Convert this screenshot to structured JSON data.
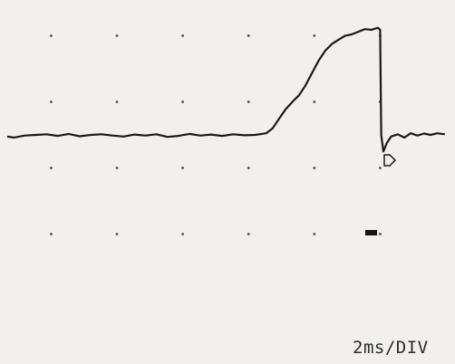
{
  "chart_data": {
    "type": "line",
    "title": "",
    "xlabel": "",
    "ylabel": "",
    "timebase": "2ms/DIV",
    "x_unit": "ms",
    "x_divisions": 10,
    "y_divisions": 8,
    "xlim": [
      0,
      20
    ],
    "ylim": [
      -4,
      4
    ],
    "grid": "dots",
    "series": [
      {
        "x": [
          0.0,
          0.3,
          0.8,
          1.3,
          1.8,
          2.3,
          2.8,
          3.3,
          3.8,
          4.3,
          4.8,
          5.3,
          5.8,
          6.3,
          6.8,
          7.3,
          7.8,
          8.3,
          8.8,
          9.3,
          9.8,
          10.3,
          10.8,
          11.3,
          11.8,
          12.1,
          12.4,
          12.7,
          13.0,
          13.3,
          13.6,
          13.9,
          14.2,
          14.5,
          14.8,
          15.1,
          15.4,
          15.7,
          16.0,
          16.3,
          16.6,
          16.9,
          17.0,
          17.05,
          17.15,
          17.3,
          17.5,
          17.8,
          18.1,
          18.4,
          18.7,
          19.0,
          19.3,
          19.6,
          19.95
        ],
        "y": [
          -0.05,
          -0.08,
          -0.02,
          0.0,
          0.02,
          -0.03,
          0.03,
          -0.04,
          0.0,
          0.02,
          -0.02,
          -0.05,
          0.01,
          -0.02,
          0.02,
          -0.06,
          -0.03,
          0.03,
          -0.02,
          0.01,
          -0.03,
          0.02,
          -0.01,
          0.0,
          0.05,
          0.2,
          0.5,
          0.78,
          1.0,
          1.2,
          1.5,
          1.88,
          2.25,
          2.55,
          2.75,
          2.88,
          3.0,
          3.04,
          3.12,
          3.2,
          3.18,
          3.24,
          3.18,
          0.0,
          -0.5,
          -0.25,
          -0.05,
          0.02,
          -0.08,
          0.05,
          -0.02,
          0.04,
          0.0,
          0.05,
          0.02
        ]
      }
    ],
    "colors": {
      "trace": "#1a1a1a",
      "screen": "#f1f0ee",
      "grid": "#4a4a4a"
    }
  }
}
